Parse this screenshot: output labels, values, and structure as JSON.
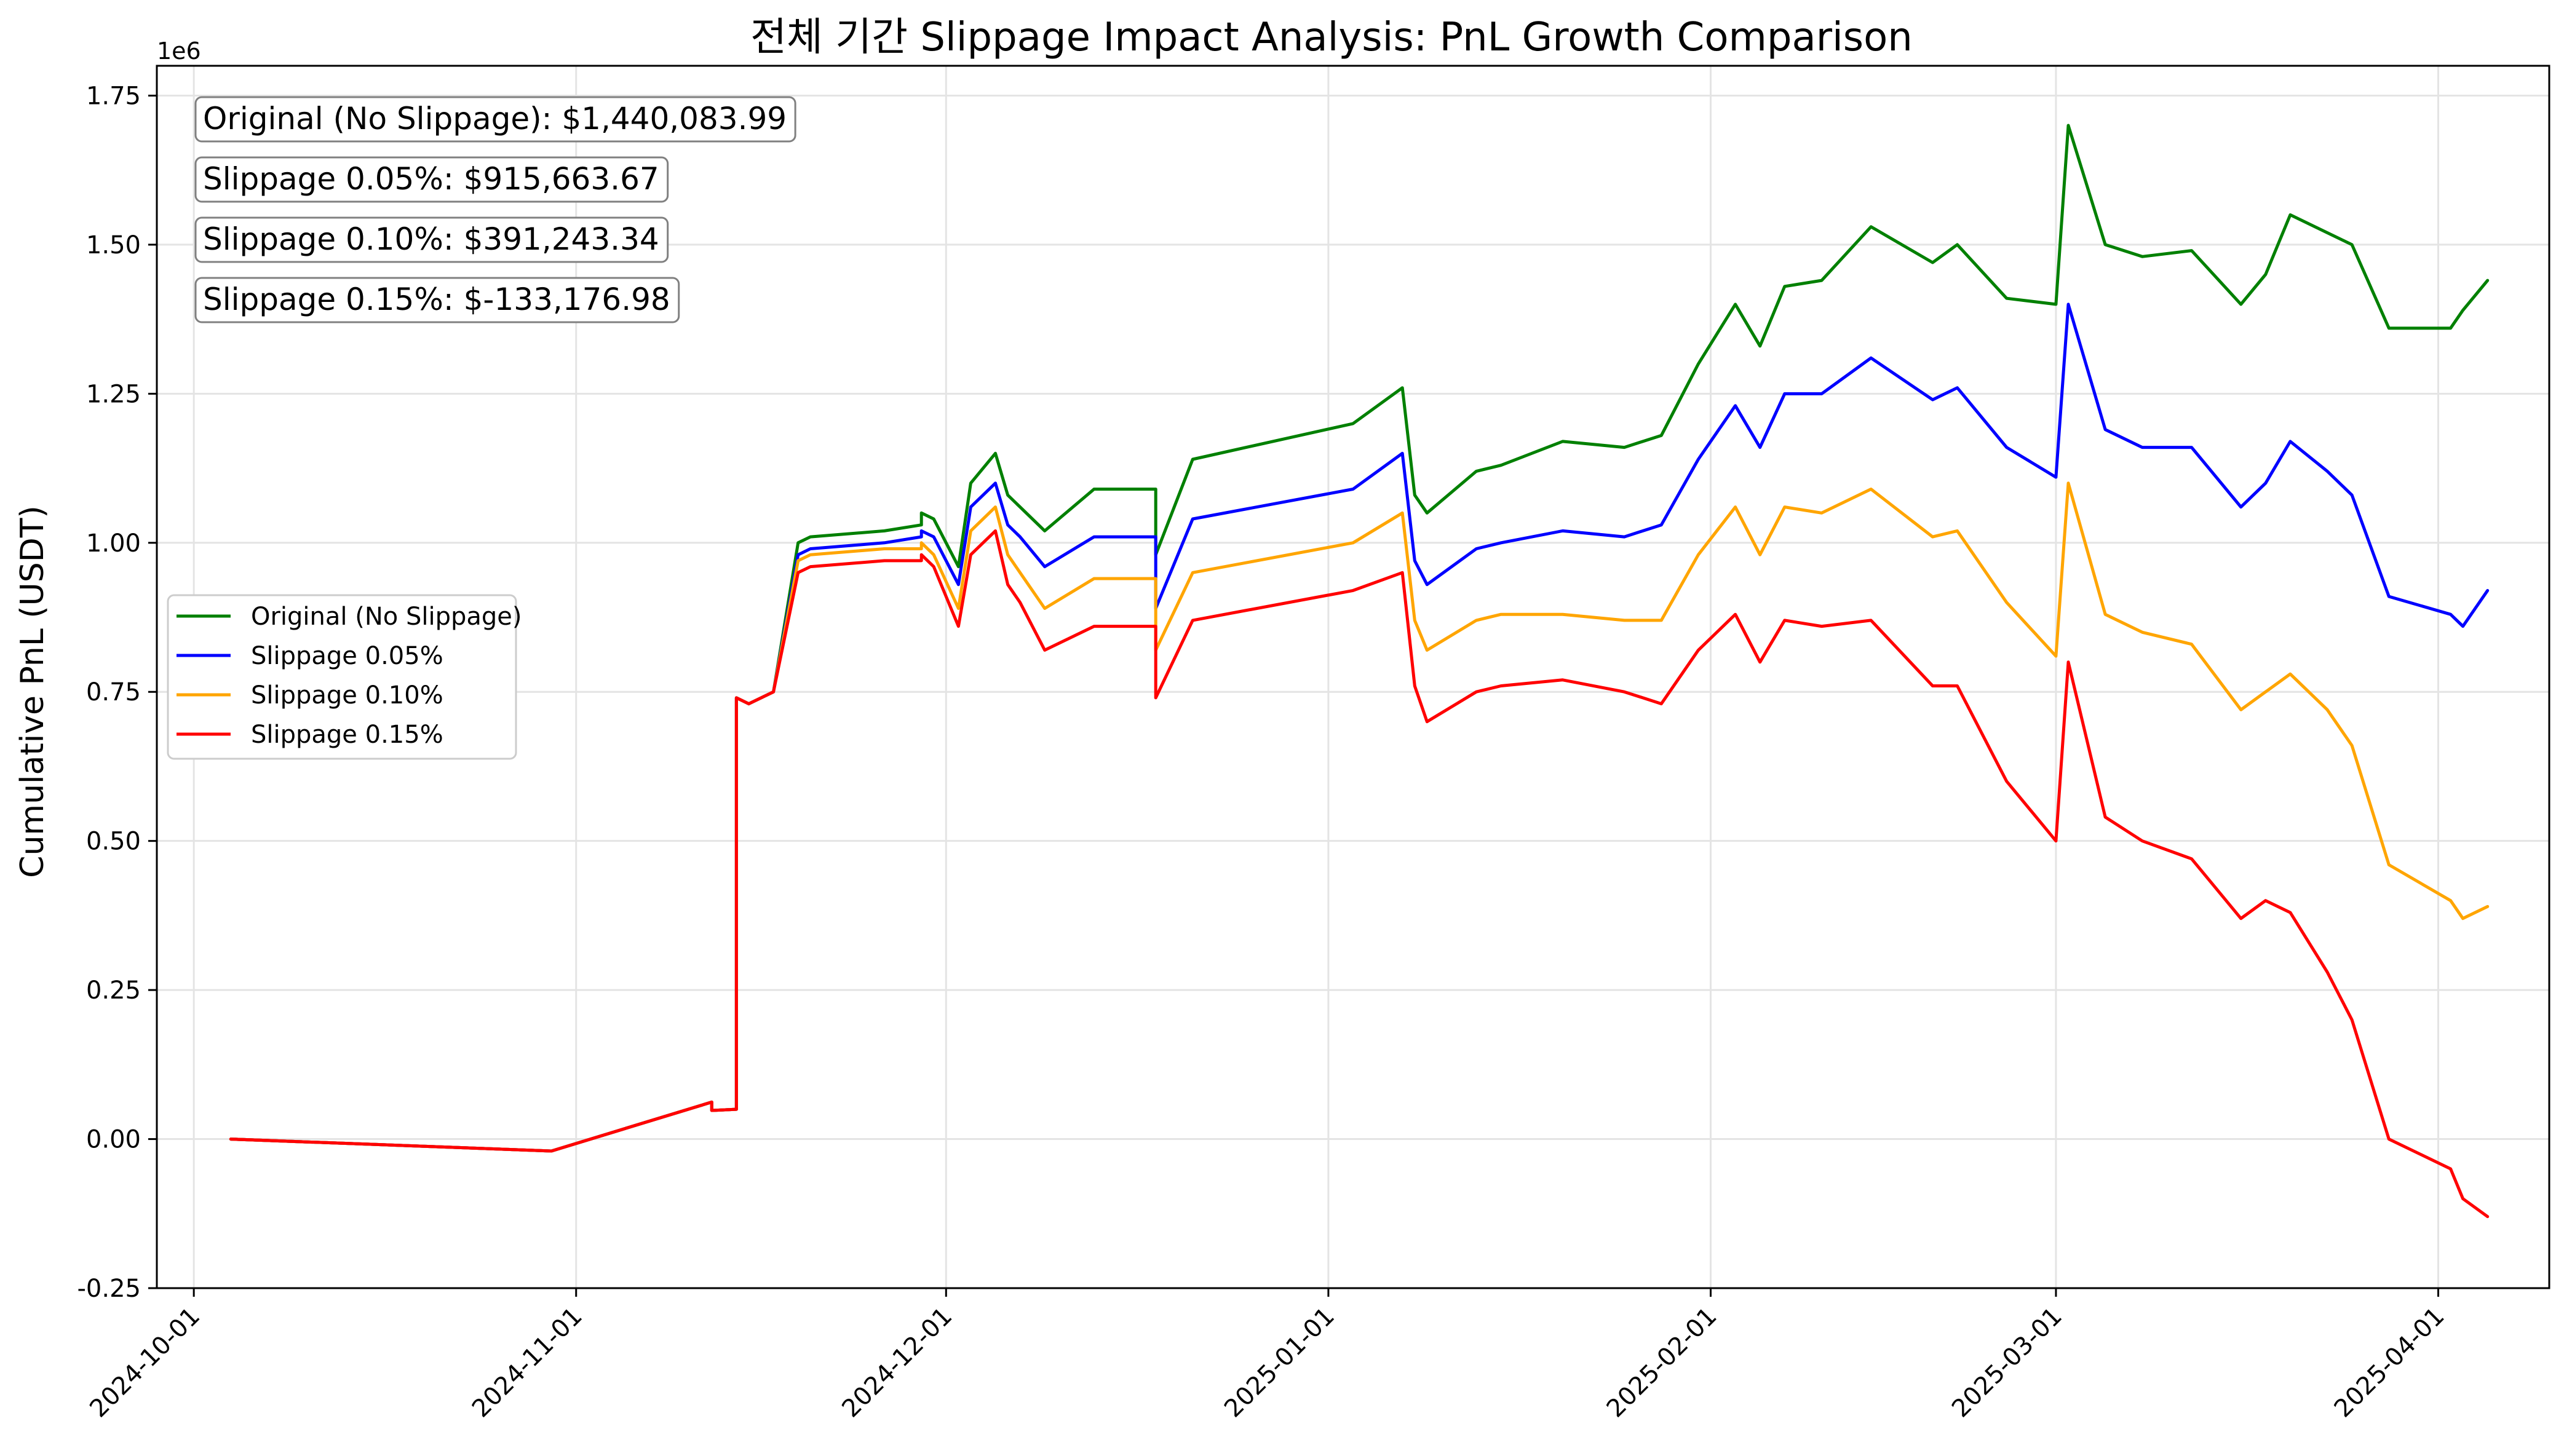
{
  "chart_data": {
    "type": "line",
    "title": "전체 기간 Slippage Impact Analysis: PnL Growth Comparison",
    "xlabel": "",
    "ylabel": "Cumulative PnL (USDT)",
    "y_offset_label": "1e6",
    "xlim": [
      "2024-09-28",
      "2025-04-10"
    ],
    "ylim": [
      -0.25,
      1.8
    ],
    "x_ticks": [
      "2024-10-01",
      "2024-11-01",
      "2024-12-01",
      "2025-01-01",
      "2025-02-01",
      "2025-03-01",
      "2025-04-01"
    ],
    "y_ticks": [
      "-0.25",
      "0.00",
      "0.25",
      "0.50",
      "0.75",
      "1.00",
      "1.25",
      "1.50",
      "1.75"
    ],
    "grid": true,
    "legend_position": "center-left",
    "annotations": [
      "Original (No Slippage): $1,440,083.99",
      "Slippage 0.05%: $915,663.67",
      "Slippage 0.10%: $391,243.34",
      "Slippage 0.15%: $-133,176.98"
    ],
    "x": [
      "2024-10-04",
      "2024-10-30",
      "2024-11-12",
      "2024-11-12",
      "2024-11-14",
      "2024-11-14",
      "2024-11-15",
      "2024-11-17",
      "2024-11-19",
      "2024-11-20",
      "2024-11-26",
      "2024-11-29",
      "2024-11-29",
      "2024-11-30",
      "2024-12-02",
      "2024-12-03",
      "2024-12-05",
      "2024-12-06",
      "2024-12-07",
      "2024-12-09",
      "2024-12-13",
      "2024-12-18",
      "2024-12-18",
      "2024-12-21",
      "2025-01-03",
      "2025-01-07",
      "2025-01-08",
      "2025-01-09",
      "2025-01-13",
      "2025-01-15",
      "2025-01-20",
      "2025-01-25",
      "2025-01-28",
      "2025-01-31",
      "2025-02-03",
      "2025-02-05",
      "2025-02-07",
      "2025-02-10",
      "2025-02-14",
      "2025-02-19",
      "2025-02-21",
      "2025-02-25",
      "2025-03-01",
      "2025-03-02",
      "2025-03-05",
      "2025-03-08",
      "2025-03-12",
      "2025-03-16",
      "2025-03-18",
      "2025-03-20",
      "2025-03-23",
      "2025-03-25",
      "2025-03-28",
      "2025-04-02",
      "2025-04-03",
      "2025-04-05"
    ],
    "series": [
      {
        "name": "Original (No Slippage)",
        "color": "#008000",
        "values": [
          0,
          -0.02,
          0.062,
          0.048,
          0.05,
          0.74,
          0.73,
          0.75,
          1.0,
          1.01,
          1.02,
          1.03,
          1.05,
          1.04,
          0.96,
          1.1,
          1.15,
          1.08,
          1.06,
          1.02,
          1.09,
          1.09,
          0.98,
          1.14,
          1.2,
          1.26,
          1.08,
          1.05,
          1.12,
          1.13,
          1.17,
          1.16,
          1.18,
          1.3,
          1.4,
          1.33,
          1.43,
          1.44,
          1.53,
          1.47,
          1.5,
          1.41,
          1.4,
          1.7,
          1.5,
          1.48,
          1.49,
          1.4,
          1.45,
          1.55,
          1.52,
          1.5,
          1.36,
          1.36,
          1.39,
          1.44
        ]
      },
      {
        "name": "Slippage 0.05%",
        "color": "#0000ff",
        "values": [
          0,
          -0.02,
          0.062,
          0.048,
          0.05,
          0.74,
          0.73,
          0.75,
          0.98,
          0.99,
          1.0,
          1.01,
          1.02,
          1.01,
          0.93,
          1.06,
          1.1,
          1.03,
          1.01,
          0.96,
          1.01,
          1.01,
          0.89,
          1.04,
          1.09,
          1.15,
          0.97,
          0.93,
          0.99,
          1.0,
          1.02,
          1.01,
          1.03,
          1.14,
          1.23,
          1.16,
          1.25,
          1.25,
          1.31,
          1.24,
          1.26,
          1.16,
          1.11,
          1.4,
          1.19,
          1.16,
          1.16,
          1.06,
          1.1,
          1.17,
          1.12,
          1.08,
          0.91,
          0.88,
          0.86,
          0.92
        ]
      },
      {
        "name": "Slippage 0.10%",
        "color": "#ffa500",
        "values": [
          0,
          -0.02,
          0.062,
          0.048,
          0.05,
          0.74,
          0.73,
          0.75,
          0.97,
          0.98,
          0.99,
          0.99,
          1.0,
          0.98,
          0.89,
          1.02,
          1.06,
          0.98,
          0.95,
          0.89,
          0.94,
          0.94,
          0.82,
          0.95,
          1.0,
          1.05,
          0.87,
          0.82,
          0.87,
          0.88,
          0.88,
          0.87,
          0.87,
          0.98,
          1.06,
          0.98,
          1.06,
          1.05,
          1.09,
          1.01,
          1.02,
          0.9,
          0.81,
          1.1,
          0.88,
          0.85,
          0.83,
          0.72,
          0.75,
          0.78,
          0.72,
          0.66,
          0.46,
          0.4,
          0.37,
          0.39
        ]
      },
      {
        "name": "Slippage 0.15%",
        "color": "#ff0000",
        "values": [
          0,
          -0.02,
          0.062,
          0.048,
          0.05,
          0.74,
          0.73,
          0.75,
          0.95,
          0.96,
          0.97,
          0.97,
          0.98,
          0.96,
          0.86,
          0.98,
          1.02,
          0.93,
          0.9,
          0.82,
          0.86,
          0.86,
          0.74,
          0.87,
          0.92,
          0.95,
          0.76,
          0.7,
          0.75,
          0.76,
          0.77,
          0.75,
          0.73,
          0.82,
          0.88,
          0.8,
          0.87,
          0.86,
          0.87,
          0.76,
          0.76,
          0.6,
          0.5,
          0.8,
          0.54,
          0.5,
          0.47,
          0.37,
          0.4,
          0.38,
          0.28,
          0.2,
          0.0,
          -0.05,
          -0.1,
          -0.13
        ]
      }
    ]
  }
}
